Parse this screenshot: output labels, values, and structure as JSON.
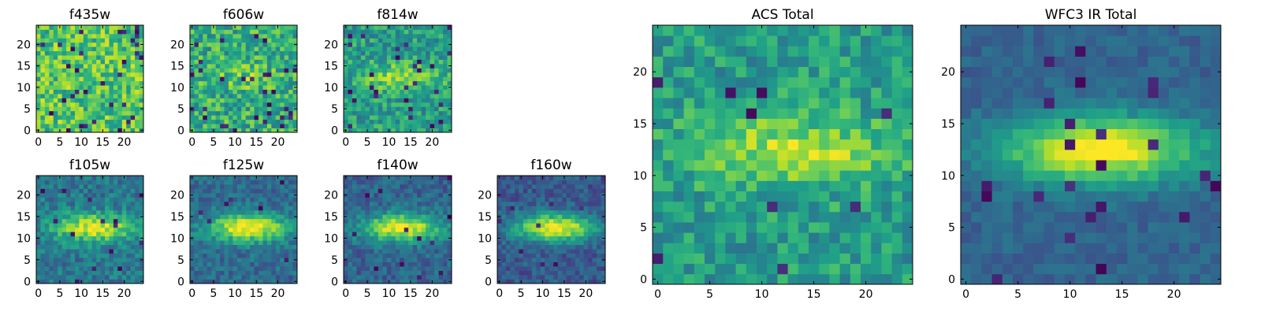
{
  "colormap": "viridis",
  "colors": {
    "background": "#ffffff",
    "axis": "#000000",
    "viridis": [
      "#440154",
      "#3b528b",
      "#21918c",
      "#5ec962",
      "#fde725"
    ]
  },
  "chart_data": [
    {
      "type": "heatmap",
      "title": "f435w",
      "grid_size": [
        25,
        25
      ],
      "xlim": [
        0,
        24
      ],
      "ylim": [
        0,
        24
      ],
      "xticks": [
        0,
        5,
        10,
        15,
        20
      ],
      "yticks": [
        0,
        5,
        10,
        15,
        20
      ],
      "signal": 0.0,
      "noise": 0.22,
      "dark_fraction": 0.05,
      "base": 0.72
    },
    {
      "type": "heatmap",
      "title": "f606w",
      "grid_size": [
        25,
        25
      ],
      "xlim": [
        0,
        24
      ],
      "ylim": [
        0,
        24
      ],
      "xticks": [
        0,
        5,
        10,
        15,
        20
      ],
      "yticks": [
        0,
        5,
        10,
        15,
        20
      ],
      "signal": 0.12,
      "noise": 0.22,
      "dark_fraction": 0.05,
      "base": 0.62
    },
    {
      "type": "heatmap",
      "title": "f814w",
      "grid_size": [
        25,
        25
      ],
      "xlim": [
        0,
        24
      ],
      "ylim": [
        0,
        24
      ],
      "xticks": [
        0,
        5,
        10,
        15,
        20
      ],
      "yticks": [
        0,
        5,
        10,
        15,
        20
      ],
      "signal": 0.3,
      "noise": 0.18,
      "dark_fraction": 0.03,
      "base": 0.55
    },
    {
      "type": "heatmap",
      "title": "f105w",
      "grid_size": [
        25,
        25
      ],
      "xlim": [
        0,
        24
      ],
      "ylim": [
        0,
        24
      ],
      "xticks": [
        0,
        5,
        10,
        15,
        20
      ],
      "yticks": [
        0,
        5,
        10,
        15,
        20
      ],
      "signal": 0.55,
      "noise": 0.14,
      "dark_fraction": 0.02,
      "base": 0.4
    },
    {
      "type": "heatmap",
      "title": "f125w",
      "grid_size": [
        25,
        25
      ],
      "xlim": [
        0,
        24
      ],
      "ylim": [
        0,
        24
      ],
      "xticks": [
        0,
        5,
        10,
        15,
        20
      ],
      "yticks": [
        0,
        5,
        10,
        15,
        20
      ],
      "signal": 0.65,
      "noise": 0.12,
      "dark_fraction": 0.02,
      "base": 0.35
    },
    {
      "type": "heatmap",
      "title": "f140w",
      "grid_size": [
        25,
        25
      ],
      "xlim": [
        0,
        24
      ],
      "ylim": [
        0,
        24
      ],
      "xticks": [
        0,
        5,
        10,
        15,
        20
      ],
      "yticks": [
        0,
        5,
        10,
        15,
        20
      ],
      "signal": 0.65,
      "noise": 0.12,
      "dark_fraction": 0.01,
      "base": 0.32
    },
    {
      "type": "heatmap",
      "title": "f160w",
      "grid_size": [
        25,
        25
      ],
      "xlim": [
        0,
        24
      ],
      "ylim": [
        0,
        24
      ],
      "xticks": [
        0,
        5,
        10,
        15,
        20
      ],
      "yticks": [
        0,
        5,
        10,
        15,
        20
      ],
      "signal": 0.7,
      "noise": 0.11,
      "dark_fraction": 0.02,
      "base": 0.28
    },
    {
      "type": "heatmap",
      "title": "ACS Total",
      "grid_size": [
        25,
        25
      ],
      "xlim": [
        0,
        24
      ],
      "ylim": [
        0,
        24
      ],
      "xticks": [
        0,
        5,
        10,
        15,
        20
      ],
      "yticks": [
        0,
        5,
        10,
        15,
        20
      ],
      "signal": 0.35,
      "noise": 0.16,
      "dark_fraction": 0.03,
      "base": 0.55
    },
    {
      "type": "heatmap",
      "title": "WFC3 IR Total",
      "grid_size": [
        25,
        25
      ],
      "xlim": [
        0,
        24
      ],
      "ylim": [
        0,
        24
      ],
      "xticks": [
        0,
        5,
        10,
        15,
        20
      ],
      "yticks": [
        0,
        5,
        10,
        15,
        20
      ],
      "signal": 0.7,
      "noise": 0.07,
      "dark_fraction": 0.03,
      "base": 0.32
    }
  ]
}
